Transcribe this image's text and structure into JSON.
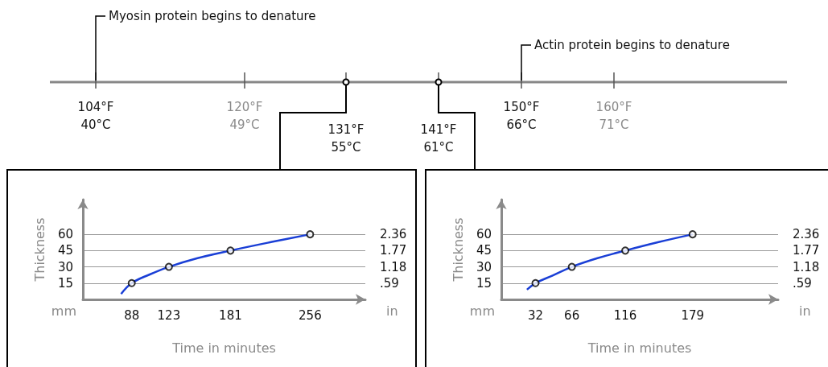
{
  "chart_data": [
    {
      "type": "other",
      "annotations": [
        "Myosin protein begins to denature",
        "Actin protein begins to denature",
        "104°F\n40°C",
        "120°F\n49°C",
        "131°F\n55°C",
        "141°F\n61°C",
        "150°F\n66°C",
        "160°F\n71°C"
      ]
    },
    {
      "type": "line",
      "xlabel": "Time in minutes",
      "ylabel": "Thickness",
      "y2label": "in",
      "annotations": [
        "mm"
      ],
      "xlim": [
        42,
        308
      ],
      "xticks": [
        88,
        123,
        181,
        256
      ],
      "ylim": [
        0,
        92
      ],
      "yticks": [
        15,
        30,
        45,
        60
      ],
      "y2lim": [
        0,
        3.62
      ],
      "y2ticks": [
        {
          "value": 0.59,
          "label": ".59"
        },
        {
          "value": 1.18,
          "label": "1.18"
        },
        {
          "value": 1.77,
          "label": "1.77"
        },
        {
          "value": 2.36,
          "label": "2.36"
        }
      ],
      "grid": "y",
      "series": [
        {
          "type": "line",
          "color": "#1a3fd6",
          "marker": "none",
          "x": [
            78,
            88,
            105,
            123,
            150,
            181,
            220,
            256
          ],
          "values": [
            5,
            15,
            23,
            30,
            38,
            45,
            53,
            60
          ]
        },
        {
          "type": "scatter",
          "color": "#000000",
          "marker": "circle",
          "x": [
            88,
            123,
            181,
            256
          ],
          "values": [
            15,
            30,
            45,
            60
          ]
        }
      ]
    },
    {
      "type": "line",
      "xlabel": "Time in minutes",
      "ylabel": "Thickness",
      "y2label": "in",
      "annotations": [
        "mm"
      ],
      "xlim": [
        0,
        259
      ],
      "xticks": [
        32,
        66,
        116,
        179
      ],
      "ylim": [
        0,
        92
      ],
      "yticks": [
        15,
        30,
        45,
        60
      ],
      "y2lim": [
        0,
        3.62
      ],
      "y2ticks": [
        {
          "value": 0.59,
          "label": ".59"
        },
        {
          "value": 1.18,
          "label": "1.18"
        },
        {
          "value": 1.77,
          "label": "1.77"
        },
        {
          "value": 2.36,
          "label": "2.36"
        }
      ],
      "grid": "y",
      "series": [
        {
          "type": "line",
          "color": "#1a3fd6",
          "marker": "none",
          "x": [
            24,
            32,
            48,
            66,
            90,
            116,
            148,
            179
          ],
          "values": [
            9,
            15,
            22,
            30,
            38,
            45,
            53,
            60
          ]
        },
        {
          "type": "scatter",
          "color": "#000000",
          "marker": "circle",
          "x": [
            32,
            66,
            116,
            179
          ],
          "values": [
            15,
            30,
            45,
            60
          ]
        }
      ]
    }
  ]
}
